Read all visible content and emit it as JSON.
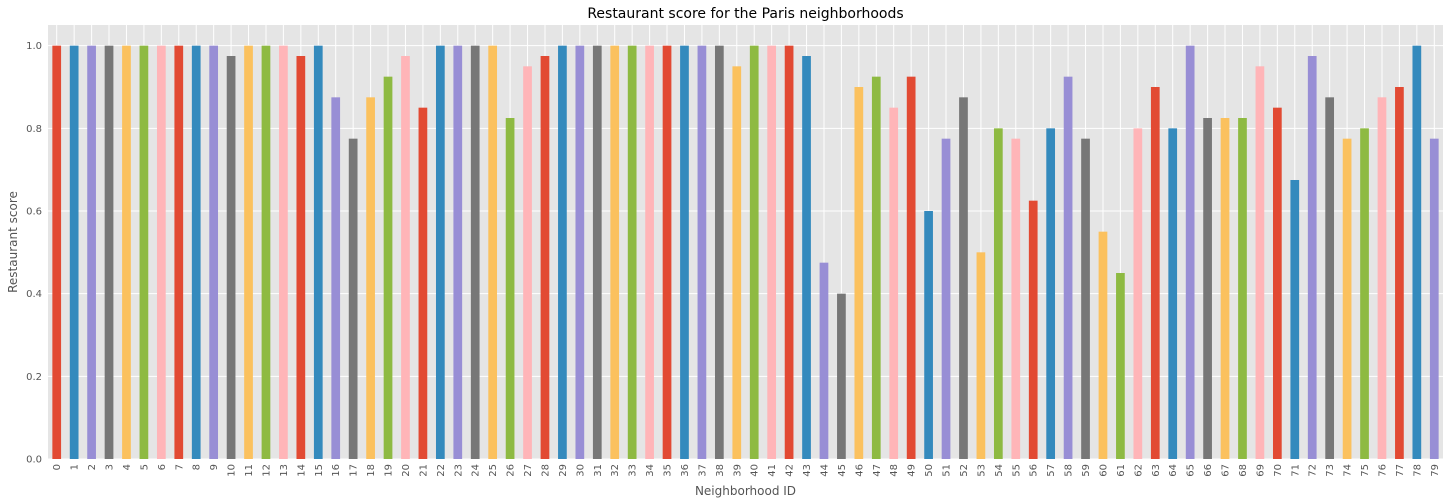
{
  "chart_data": {
    "type": "bar",
    "title": "Restaurant score for the Paris neighborhoods",
    "xlabel": "Neighborhood ID",
    "ylabel": "Restaurant score",
    "ylim": [
      0,
      1.05
    ],
    "grid": true,
    "yticks": [
      "0.0",
      "0.2",
      "0.4",
      "0.6",
      "0.8",
      "1.0"
    ],
    "categories": [
      "0",
      "1",
      "2",
      "3",
      "4",
      "5",
      "6",
      "7",
      "8",
      "9",
      "10",
      "11",
      "12",
      "13",
      "14",
      "15",
      "16",
      "17",
      "18",
      "19",
      "20",
      "21",
      "22",
      "23",
      "24",
      "25",
      "26",
      "27",
      "28",
      "29",
      "30",
      "31",
      "32",
      "33",
      "34",
      "35",
      "36",
      "37",
      "38",
      "39",
      "40",
      "41",
      "42",
      "43",
      "44",
      "45",
      "46",
      "47",
      "48",
      "49",
      "50",
      "51",
      "52",
      "53",
      "54",
      "55",
      "56",
      "57",
      "58",
      "59",
      "60",
      "61",
      "62",
      "63",
      "64",
      "65",
      "66",
      "67",
      "68",
      "69",
      "70",
      "71",
      "72",
      "73",
      "74",
      "75",
      "76",
      "77",
      "78",
      "79"
    ],
    "values": [
      1.0,
      1.0,
      1.0,
      1.0,
      1.0,
      1.0,
      1.0,
      1.0,
      1.0,
      1.0,
      0.975,
      1.0,
      1.0,
      1.0,
      0.975,
      1.0,
      0.875,
      0.775,
      0.875,
      0.925,
      0.975,
      0.85,
      1.0,
      1.0,
      1.0,
      1.0,
      0.825,
      0.95,
      0.975,
      1.0,
      1.0,
      1.0,
      1.0,
      1.0,
      1.0,
      1.0,
      1.0,
      1.0,
      1.0,
      0.95,
      1.0,
      1.0,
      1.0,
      0.975,
      0.475,
      0.4,
      0.9,
      0.925,
      0.85,
      0.925,
      0.6,
      0.775,
      0.875,
      0.5,
      0.8,
      0.775,
      0.625,
      0.8,
      0.925,
      0.775,
      0.55,
      0.45,
      0.8,
      0.9,
      0.8,
      1.0,
      0.825,
      0.825,
      0.825,
      0.95,
      0.85,
      0.675,
      0.975,
      0.875,
      0.775,
      0.8,
      0.875,
      0.9,
      1.0,
      0.775
    ],
    "colors": [
      "#E24A33",
      "#348ABD",
      "#988ED5",
      "#777777",
      "#FBC15E",
      "#8EBA42",
      "#FFB5B8"
    ]
  }
}
